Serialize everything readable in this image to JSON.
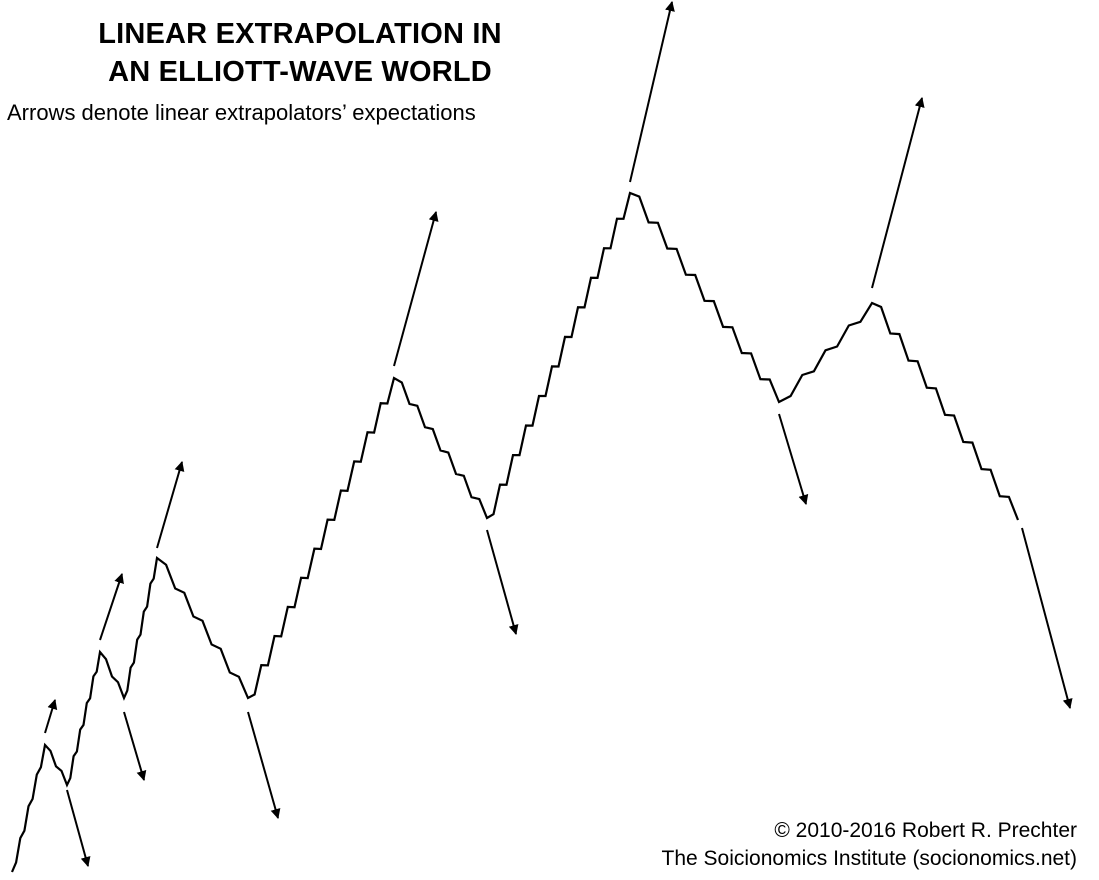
{
  "header": {
    "title_line1": "LINEAR EXTRAPOLATION IN",
    "title_line2": "AN ELLIOTT-WAVE WORLD",
    "subtitle": "Arrows denote linear extrapolators’ expectations"
  },
  "footer": {
    "copyright": "© 2010-2016 Robert R. Prechter",
    "institute": "The Soicionomics Institute (socionomics.net)"
  },
  "colors": {
    "line": "#000000",
    "background": "#ffffff"
  }
}
